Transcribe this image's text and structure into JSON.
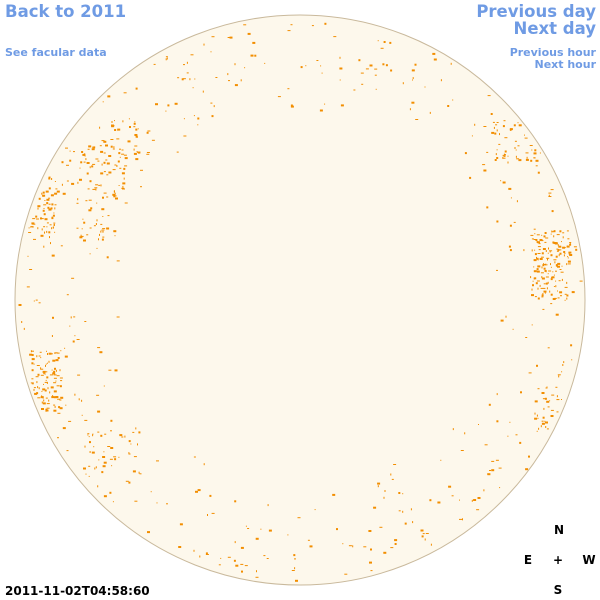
{
  "nav": {
    "back": "Back to 2011",
    "facular": "See facular data",
    "prev_day": "Previous day",
    "next_day": "Next day",
    "prev_hour": "Previous hour",
    "next_hour": "Next hour"
  },
  "timestamp": "2011-11-02T04:58:60",
  "compass": {
    "north": "N",
    "east": "E",
    "center": "+",
    "west": "W",
    "south": "S"
  }
}
